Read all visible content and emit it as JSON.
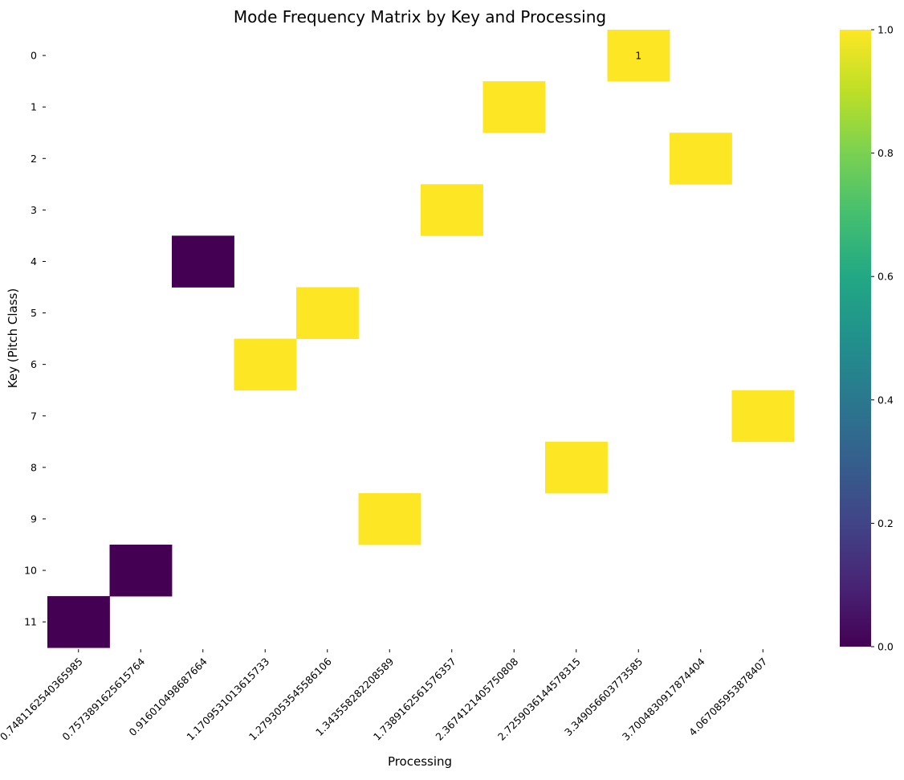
{
  "chart_data": {
    "type": "heatmap",
    "title": "Mode Frequency Matrix by Key and Processing",
    "xlabel": "Processing",
    "ylabel": "Key (Pitch Class)",
    "x_categories": [
      "0.748116254036598​5",
      "0.757389162561576​4",
      "0.916010498687664",
      "1.170953101361573​3",
      "1.279305354558610​6",
      "1.343558282208589",
      "1.738916256157635​7",
      "2.367412140575080​8",
      "2.725903614457831​5",
      "3.349056603773585",
      "3.700483091787440​4",
      "4.067085953878407"
    ],
    "y_categories": [
      "0",
      "1",
      "2",
      "3",
      "4",
      "5",
      "6",
      "7",
      "8",
      "9",
      "10",
      "11"
    ],
    "cells": [
      {
        "row": 0,
        "col": 9,
        "value": 1
      },
      {
        "row": 1,
        "col": 7,
        "value": 1
      },
      {
        "row": 2,
        "col": 10,
        "value": 1
      },
      {
        "row": 3,
        "col": 6,
        "value": 1
      },
      {
        "row": 4,
        "col": 2,
        "value": 0
      },
      {
        "row": 5,
        "col": 4,
        "value": 1
      },
      {
        "row": 6,
        "col": 3,
        "value": 1
      },
      {
        "row": 7,
        "col": 11,
        "value": 1
      },
      {
        "row": 8,
        "col": 8,
        "value": 1
      },
      {
        "row": 9,
        "col": 5,
        "value": 1
      },
      {
        "row": 10,
        "col": 1,
        "value": 0
      },
      {
        "row": 11,
        "col": 0,
        "value": 0
      }
    ],
    "annotations": [
      {
        "row": 0,
        "col": 9,
        "text": "1"
      }
    ],
    "colorbar": {
      "colormap": "viridis",
      "range": [
        0.0,
        1.0
      ],
      "ticks": [
        "0.0",
        "0.2",
        "0.4",
        "0.6",
        "0.8",
        "1.0"
      ]
    },
    "grid": false,
    "legend": "none"
  }
}
